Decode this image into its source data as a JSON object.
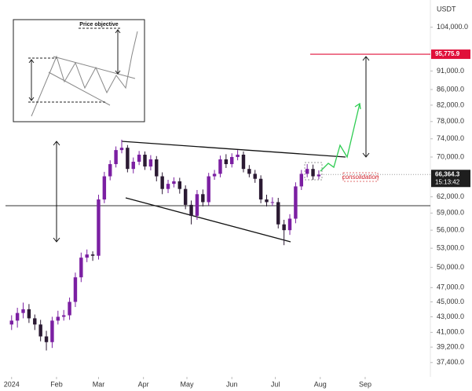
{
  "chart_data": {
    "type": "candlestick",
    "currency": "USDT",
    "log_scale": true,
    "up_color": "#7b1fa2",
    "down_color": "#2b1a33",
    "x": [
      1,
      5,
      9,
      13,
      17,
      21,
      25,
      29,
      33,
      37,
      41,
      45,
      49,
      53,
      57,
      61,
      65,
      69,
      73,
      77,
      81,
      85,
      89,
      93,
      97,
      101,
      105,
      109,
      113,
      117,
      121,
      125,
      129,
      133,
      137,
      141,
      145,
      149,
      153,
      157,
      161,
      165,
      169,
      173,
      177,
      181,
      185,
      189,
      193,
      197,
      201,
      205,
      209,
      213
    ],
    "open": [
      42000,
      42500,
      43500,
      44000,
      42800,
      42000,
      40500,
      39800,
      42500,
      43000,
      43200,
      45000,
      48500,
      51500,
      52000,
      51800,
      61500,
      66000,
      68500,
      71500,
      72000,
      67500,
      69000,
      70500,
      68000,
      69500,
      66000,
      63500,
      64500,
      65000,
      63500,
      60500,
      58500,
      62500,
      61000,
      66000,
      66500,
      69500,
      68500,
      70000,
      70500,
      67500,
      66500,
      65500,
      61500,
      61000,
      61000,
      57000,
      56000,
      58000,
      64000,
      66500,
      67500,
      66000
    ],
    "high": [
      43200,
      44200,
      44900,
      44700,
      43300,
      42600,
      41200,
      43000,
      43800,
      43900,
      45600,
      49200,
      52300,
      52800,
      52500,
      62400,
      66900,
      69300,
      72300,
      73800,
      72600,
      69900,
      71300,
      71200,
      70400,
      70200,
      66800,
      65300,
      65800,
      65700,
      64200,
      61300,
      63300,
      63400,
      66700,
      67300,
      70300,
      70600,
      70800,
      71500,
      71200,
      68300,
      67300,
      66200,
      62400,
      61900,
      61800,
      57800,
      58800,
      64800,
      67300,
      68500,
      68400,
      67200
    ],
    "low": [
      41300,
      41600,
      42800,
      42200,
      41300,
      39900,
      38800,
      39100,
      42000,
      42500,
      42600,
      44300,
      47800,
      50800,
      51000,
      51200,
      60800,
      65200,
      67800,
      70800,
      66800,
      66600,
      68300,
      67300,
      67200,
      65000,
      62500,
      62700,
      63800,
      62600,
      59700,
      57000,
      57800,
      60200,
      60400,
      65300,
      65800,
      67700,
      67800,
      69300,
      66800,
      65800,
      64700,
      60800,
      60200,
      60300,
      56300,
      53500,
      55200,
      57200,
      63300,
      65800,
      65300,
      65400
    ],
    "close": [
      42500,
      43500,
      44000,
      42800,
      42000,
      40500,
      39800,
      42500,
      43000,
      43200,
      45000,
      48500,
      51500,
      52000,
      51800,
      61500,
      66000,
      68500,
      71500,
      72000,
      67500,
      69000,
      70500,
      68000,
      69500,
      66000,
      63500,
      64500,
      65000,
      63500,
      60500,
      58500,
      62500,
      61000,
      66000,
      66500,
      69500,
      68500,
      70000,
      70500,
      67500,
      66500,
      65500,
      61500,
      61000,
      61000,
      57000,
      56000,
      58000,
      64000,
      66500,
      67500,
      66000,
      66364.3
    ],
    "xlim": [
      -7,
      290
    ],
    "xticks": [
      {
        "value": 1,
        "label": "2024"
      },
      {
        "value": 32,
        "label": "Feb"
      },
      {
        "value": 61,
        "label": "Mar"
      },
      {
        "value": 92,
        "label": "Apr"
      },
      {
        "value": 122,
        "label": "May"
      },
      {
        "value": 153,
        "label": "Jun"
      },
      {
        "value": 183,
        "label": "Jul"
      },
      {
        "value": 214,
        "label": "Aug"
      },
      {
        "value": 245,
        "label": "Sep"
      }
    ],
    "ylim": [
      35800,
      113000
    ],
    "yticks": [
      {
        "value": 104000,
        "label": "104,000.0"
      },
      {
        "value": 91000,
        "label": "91,000.0"
      },
      {
        "value": 86000,
        "label": "86,000.0"
      },
      {
        "value": 82000,
        "label": "82,000.0"
      },
      {
        "value": 78000,
        "label": "78,000.0"
      },
      {
        "value": 74000,
        "label": "74,000.0"
      },
      {
        "value": 70000,
        "label": "70,000.0"
      },
      {
        "value": 62000,
        "label": "62,000.0"
      },
      {
        "value": 59000,
        "label": "59,000.0"
      },
      {
        "value": 56000,
        "label": "56,000.0"
      },
      {
        "value": 53000,
        "label": "53,000.0"
      },
      {
        "value": 50000,
        "label": "50,000.0"
      },
      {
        "value": 47000,
        "label": "47,000.0"
      },
      {
        "value": 45000,
        "label": "45,000.0"
      },
      {
        "value": 43000,
        "label": "43,000.0"
      },
      {
        "value": 41000,
        "label": "41,000.0"
      },
      {
        "value": 39200,
        "label": "39,200.0"
      },
      {
        "value": 37400,
        "label": "37,400.0"
      }
    ],
    "target_level": {
      "value": 95775.9,
      "label": "95,775.9",
      "color": "#e0103a"
    },
    "last_price": {
      "value": 66364.3,
      "label": "66,364.3",
      "countdown": "15:13:42",
      "color": "#1e1e1e"
    },
    "annotations": {
      "consolidation": "consolidation",
      "inset_title": "Price objective"
    }
  }
}
